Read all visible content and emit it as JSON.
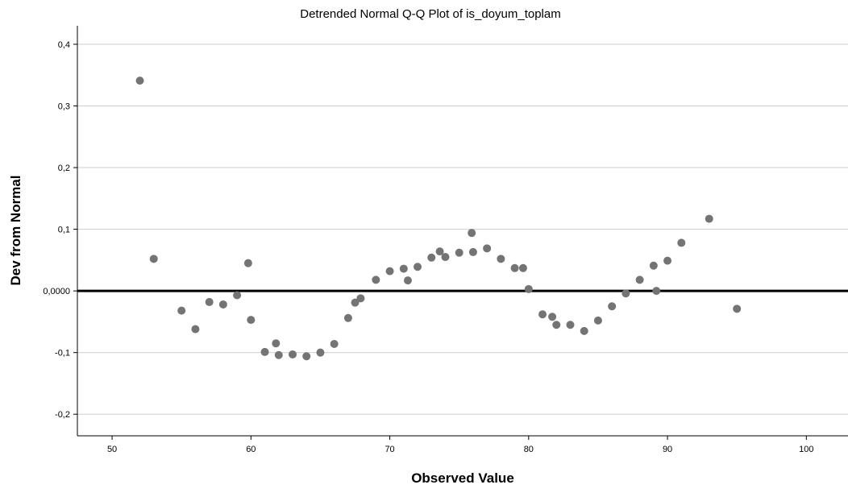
{
  "chart_data": {
    "type": "scatter",
    "title": "Detrended Normal Q-Q Plot of is_doyum_toplam",
    "xlabel": "Observed Value",
    "ylabel": "Dev from Normal",
    "xlim": [
      47.5,
      103.0
    ],
    "ylim": [
      -0.235,
      0.43
    ],
    "x_ticks": [
      50,
      60,
      70,
      80,
      90,
      100
    ],
    "x_tick_labels": [
      "50",
      "60",
      "70",
      "80",
      "90",
      "100"
    ],
    "y_ticks": [
      -0.2,
      -0.1,
      0.0,
      0.1,
      0.2,
      0.3,
      0.4
    ],
    "y_tick_labels": [
      "-0,2",
      "-0,1",
      "0,0000",
      "0,1",
      "0,2",
      "0,3",
      "0,4"
    ],
    "grid": "horizontal",
    "reference_line_y": 0,
    "colors": {
      "points": "#747474",
      "grid": "#d2d2d2",
      "reference": "#000000",
      "axis": "#000000"
    },
    "points": [
      {
        "x": 52.0,
        "y": 0.341
      },
      {
        "x": 53.0,
        "y": 0.052
      },
      {
        "x": 55.0,
        "y": -0.032
      },
      {
        "x": 56.0,
        "y": -0.062
      },
      {
        "x": 57.0,
        "y": -0.018
      },
      {
        "x": 58.0,
        "y": -0.022
      },
      {
        "x": 59.0,
        "y": -0.007
      },
      {
        "x": 59.8,
        "y": 0.045
      },
      {
        "x": 60.0,
        "y": -0.047
      },
      {
        "x": 61.0,
        "y": -0.099
      },
      {
        "x": 61.8,
        "y": -0.085
      },
      {
        "x": 62.0,
        "y": -0.104
      },
      {
        "x": 63.0,
        "y": -0.103
      },
      {
        "x": 64.0,
        "y": -0.106
      },
      {
        "x": 65.0,
        "y": -0.1
      },
      {
        "x": 66.0,
        "y": -0.086
      },
      {
        "x": 67.0,
        "y": -0.044
      },
      {
        "x": 67.5,
        "y": -0.019
      },
      {
        "x": 67.9,
        "y": -0.012
      },
      {
        "x": 69.0,
        "y": 0.018
      },
      {
        "x": 70.0,
        "y": 0.032
      },
      {
        "x": 71.0,
        "y": 0.036
      },
      {
        "x": 71.3,
        "y": 0.017
      },
      {
        "x": 72.0,
        "y": 0.039
      },
      {
        "x": 73.0,
        "y": 0.054
      },
      {
        "x": 73.6,
        "y": 0.064
      },
      {
        "x": 74.0,
        "y": 0.055
      },
      {
        "x": 75.0,
        "y": 0.062
      },
      {
        "x": 75.9,
        "y": 0.094
      },
      {
        "x": 76.0,
        "y": 0.063
      },
      {
        "x": 77.0,
        "y": 0.069
      },
      {
        "x": 78.0,
        "y": 0.052
      },
      {
        "x": 79.0,
        "y": 0.037
      },
      {
        "x": 79.6,
        "y": 0.037
      },
      {
        "x": 80.0,
        "y": 0.003
      },
      {
        "x": 81.0,
        "y": -0.038
      },
      {
        "x": 81.7,
        "y": -0.042
      },
      {
        "x": 82.0,
        "y": -0.055
      },
      {
        "x": 83.0,
        "y": -0.055
      },
      {
        "x": 84.0,
        "y": -0.065
      },
      {
        "x": 85.0,
        "y": -0.048
      },
      {
        "x": 86.0,
        "y": -0.025
      },
      {
        "x": 87.0,
        "y": -0.004
      },
      {
        "x": 88.0,
        "y": 0.018
      },
      {
        "x": 89.0,
        "y": 0.041
      },
      {
        "x": 89.2,
        "y": 0.0
      },
      {
        "x": 90.0,
        "y": 0.049
      },
      {
        "x": 91.0,
        "y": 0.078
      },
      {
        "x": 93.0,
        "y": 0.117
      },
      {
        "x": 95.0,
        "y": -0.029
      }
    ]
  }
}
